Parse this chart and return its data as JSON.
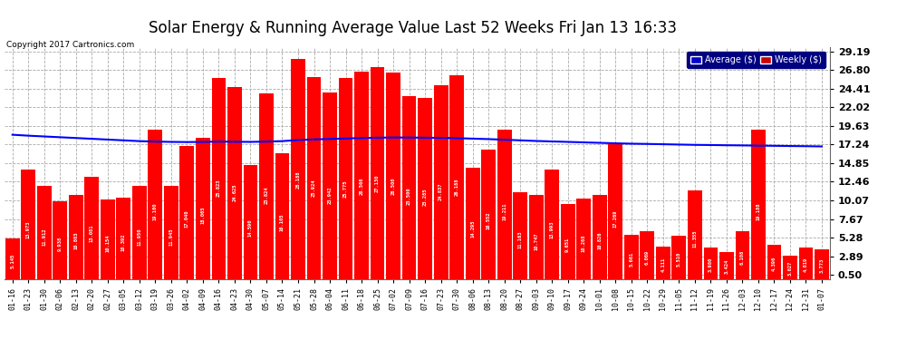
{
  "title": "Solar Energy & Running Average Value Last 52 Weeks Fri Jan 13 16:33",
  "copyright": "Copyright 2017 Cartronics.com",
  "categories": [
    "01-16",
    "01-23",
    "01-30",
    "02-06",
    "02-13",
    "02-20",
    "02-27",
    "03-05",
    "03-12",
    "03-19",
    "03-26",
    "04-02",
    "04-09",
    "04-16",
    "04-23",
    "04-30",
    "05-07",
    "05-14",
    "05-21",
    "05-28",
    "06-04",
    "06-11",
    "06-18",
    "06-25",
    "07-02",
    "07-09",
    "07-16",
    "07-23",
    "07-30",
    "08-06",
    "08-13",
    "08-20",
    "08-27",
    "09-03",
    "09-10",
    "09-17",
    "09-24",
    "10-01",
    "10-08",
    "10-15",
    "10-22",
    "10-29",
    "11-05",
    "11-12",
    "11-19",
    "11-26",
    "12-03",
    "12-10",
    "12-17",
    "12-24",
    "12-31",
    "01-07"
  ],
  "weekly_values": [
    5.145,
    13.973,
    11.912,
    9.938,
    10.803,
    13.081,
    10.154,
    10.392,
    11.95,
    19.1,
    11.945,
    17.04,
    18.065,
    25.823,
    24.625,
    14.59,
    23.824,
    16.105,
    28.188,
    25.924,
    23.942,
    25.775,
    26.566,
    27.13,
    26.5,
    23.5,
    23.285,
    24.837,
    26.188,
    14.295,
    16.552,
    19.211,
    11.163,
    10.747,
    13.993,
    9.651,
    10.268,
    10.826,
    17.269,
    5.661,
    6.069,
    4.111,
    5.51,
    11.355,
    3.98,
    3.424,
    6.108,
    19.188,
    4.396,
    3.027,
    4.019,
    3.773
  ],
  "average_values": [
    18.5,
    18.38,
    18.28,
    18.18,
    18.08,
    17.98,
    17.88,
    17.78,
    17.68,
    17.62,
    17.58,
    17.56,
    17.58,
    17.62,
    17.6,
    17.58,
    17.62,
    17.68,
    17.82,
    17.9,
    17.96,
    18.02,
    18.08,
    18.12,
    18.15,
    18.14,
    18.12,
    18.1,
    18.06,
    18.0,
    17.94,
    17.86,
    17.78,
    17.7,
    17.64,
    17.58,
    17.52,
    17.46,
    17.4,
    17.35,
    17.32,
    17.28,
    17.24,
    17.2,
    17.18,
    17.15,
    17.13,
    17.1,
    17.08,
    17.05,
    17.03,
    17.0
  ],
  "bar_color": "#ff0000",
  "line_color": "#0000ff",
  "background_color": "#ffffff",
  "grid_color": "#aaaaaa",
  "yticks": [
    0.5,
    2.89,
    5.28,
    7.67,
    10.07,
    12.46,
    14.85,
    17.24,
    19.63,
    22.02,
    24.41,
    26.8,
    29.19
  ],
  "ylim": [
    0.0,
    29.69
  ],
  "title_fontsize": 12,
  "legend_avg_color": "#0000cc",
  "legend_weekly_color": "#cc0000",
  "legend_avg_label": "Average ($)",
  "legend_weekly_label": "Weekly ($)"
}
